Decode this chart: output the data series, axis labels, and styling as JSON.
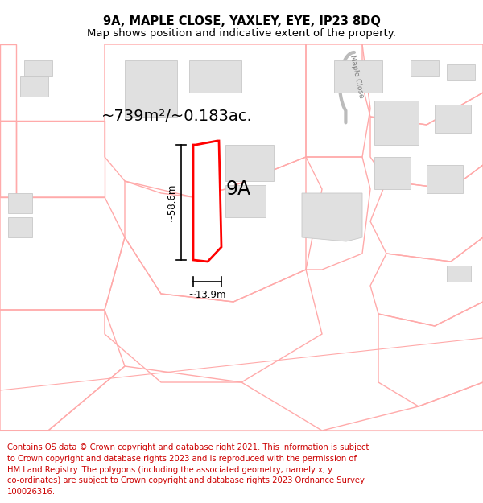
{
  "title_line1": "9A, MAPLE CLOSE, YAXLEY, EYE, IP23 8DQ",
  "title_line2": "Map shows position and indicative extent of the property.",
  "area_text": "~739m²/~0.183ac.",
  "label_9a": "9A",
  "dim_height": "~58.6m",
  "dim_width": "~13.9m",
  "road_label": "Maple Close",
  "copyright_text": "Contains OS data © Crown copyright and database right 2021. This information is subject to Crown copyright and database rights 2023 and is reproduced with the permission of HM Land Registry. The polygons (including the associated geometry, namely x, y co-ordinates) are subject to Crown copyright and database rights 2023 Ordnance Survey 100026316.",
  "bg_color": "#ffffff",
  "map_bg": "#fff5f5",
  "plot_color": "#ff0000",
  "light_pink": "#ffaaaa",
  "building_fill": "#e0e0e0",
  "building_edge": "#c8c8c8",
  "dim_color": "#000000",
  "title_color": "#000000",
  "copyright_color": "#cc0000",
  "road_curve_color": "#c8c8c8"
}
